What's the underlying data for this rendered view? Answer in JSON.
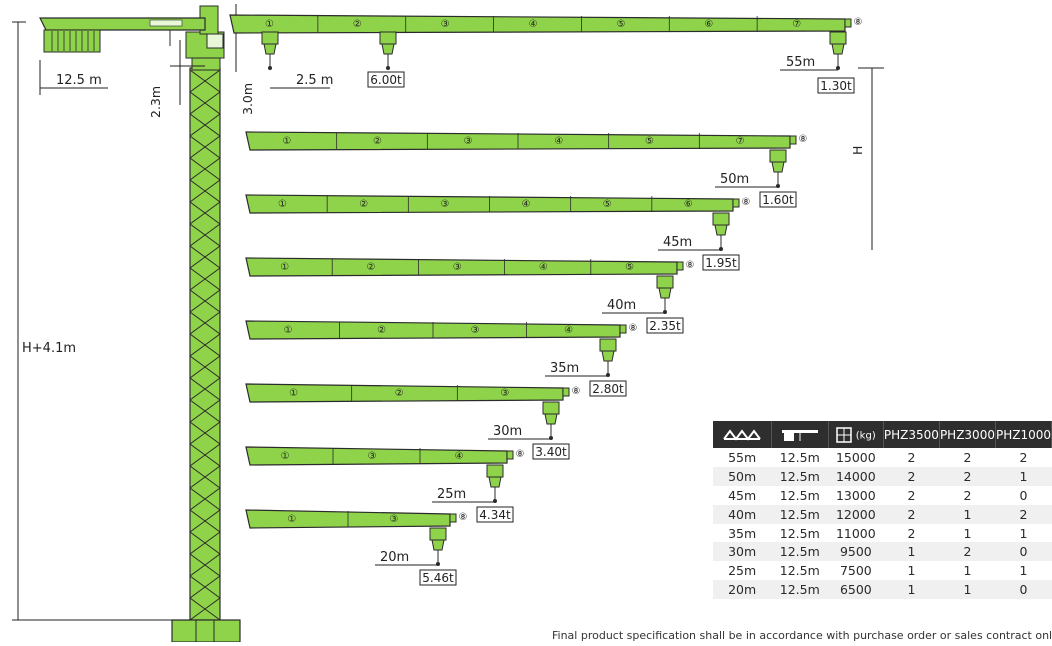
{
  "colors": {
    "crane": "#8fd34b",
    "outline": "#2b2b2b",
    "header": "#2e2e2e"
  },
  "dimensions": {
    "counter_jib": "12.5 m",
    "tower_top": "2.3m",
    "hook_offset": "2.5 m",
    "apex": "3.0m",
    "total_height": "H+4.1m",
    "height": "H"
  },
  "top_jib": {
    "radius": "55m",
    "tip_load": "1.30t",
    "max_load": "6.00t"
  },
  "jibs": [
    {
      "radius": "50m",
      "load": "1.60t",
      "sections": [
        "①",
        "②",
        "③",
        "④",
        "⑤",
        "⑦",
        "⑧"
      ]
    },
    {
      "radius": "45m",
      "load": "1.95t",
      "sections": [
        "①",
        "②",
        "③",
        "④",
        "⑤",
        "⑥",
        "⑧"
      ]
    },
    {
      "radius": "40m",
      "load": "2.35t",
      "sections": [
        "①",
        "②",
        "③",
        "④",
        "⑤",
        "⑧"
      ]
    },
    {
      "radius": "35m",
      "load": "2.80t",
      "sections": [
        "①",
        "②",
        "③",
        "④",
        "⑧"
      ]
    },
    {
      "radius": "30m",
      "load": "3.40t",
      "sections": [
        "①",
        "②",
        "③",
        "⑧"
      ]
    },
    {
      "radius": "25m",
      "load": "4.34t",
      "sections": [
        "①",
        "③",
        "④",
        "⑧"
      ]
    },
    {
      "radius": "20m",
      "load": "5.46t",
      "sections": [
        "①",
        "③",
        "⑧"
      ]
    }
  ],
  "top_sections": [
    "①",
    "②",
    "③",
    "④",
    "⑤",
    "⑥",
    "⑦",
    "⑧"
  ],
  "table": {
    "header": {
      "jib_icon": "jib-length-icon",
      "counter_icon": "counter-jib-icon",
      "weight_icon": "counterweight-icon",
      "weight_unit": "(kg)",
      "col4": "PHZ3500",
      "col5": "PHZ3000",
      "col6": "PHZ1000"
    },
    "rows": [
      [
        "55m",
        "12.5m",
        "15000",
        "2",
        "2",
        "2"
      ],
      [
        "50m",
        "12.5m",
        "14000",
        "2",
        "2",
        "1"
      ],
      [
        "45m",
        "12.5m",
        "13000",
        "2",
        "2",
        "0"
      ],
      [
        "40m",
        "12.5m",
        "12000",
        "2",
        "1",
        "2"
      ],
      [
        "35m",
        "12.5m",
        "11000",
        "2",
        "1",
        "1"
      ],
      [
        "30m",
        "12.5m",
        "9500",
        "1",
        "2",
        "0"
      ],
      [
        "25m",
        "12.5m",
        "7500",
        "1",
        "1",
        "1"
      ],
      [
        "20m",
        "12.5m",
        "6500",
        "1",
        "1",
        "0"
      ]
    ]
  },
  "footnote": "Final product specification shall be in accordance with purchase order or sales contract only."
}
